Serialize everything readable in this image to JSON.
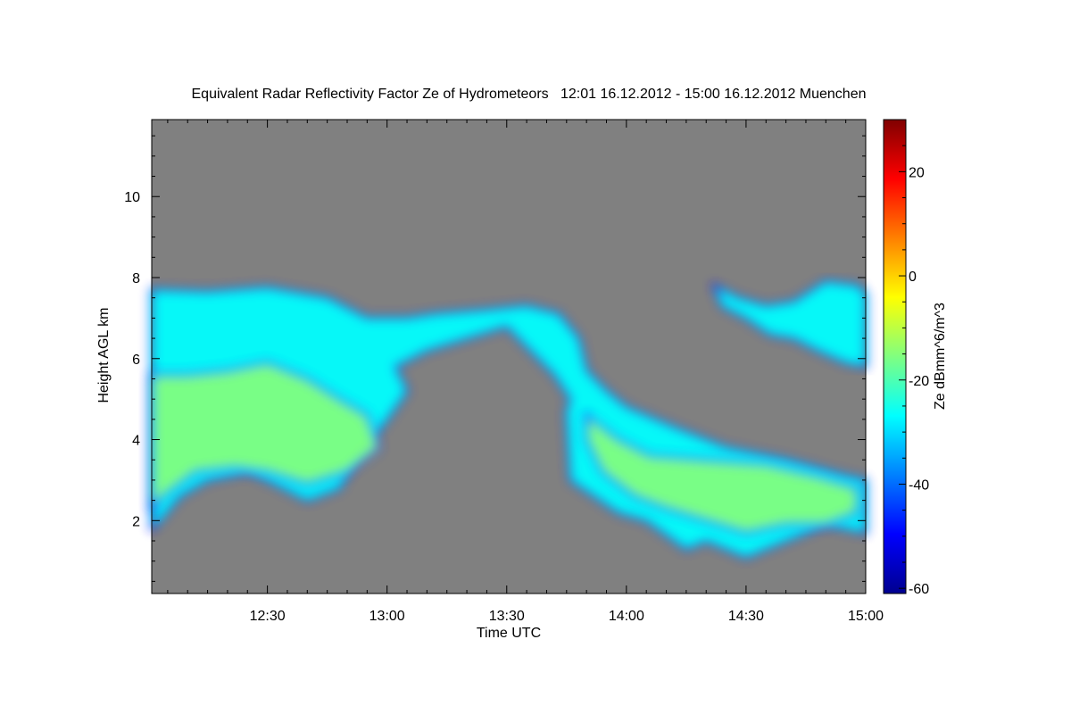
{
  "chart_data": {
    "type": "heatmap",
    "title": "Equivalent Radar Reflectivity Factor Ze of Hydrometeors   12:01 16.12.2012 - 15:00 16.12.2012 Muenchen",
    "xlabel": "Time UTC",
    "ylabel": "Height AGL km",
    "x_ticks": [
      "12:30",
      "13:00",
      "13:30",
      "14:00",
      "14:30",
      "15:00"
    ],
    "x_tick_minutes": [
      30,
      60,
      90,
      120,
      150,
      180
    ],
    "xlim_minutes": [
      1,
      180
    ],
    "y_ticks": [
      "2",
      "4",
      "6",
      "8",
      "10"
    ],
    "y_tick_values": [
      2,
      4,
      6,
      8,
      10
    ],
    "ylim": [
      0.2,
      11.9
    ],
    "colorbar": {
      "label": "Ze dBmm^6/m^3",
      "ticks": [
        "20",
        "0",
        "-20",
        "-40",
        "-60"
      ],
      "tick_values": [
        20,
        0,
        -20,
        -40,
        -60
      ],
      "range": [
        -61,
        30
      ],
      "colors": [
        "#00008f",
        "#0000ff",
        "#0080ff",
        "#00ffff",
        "#80ff80",
        "#ffff00",
        "#ff8000",
        "#ff0000",
        "#800000"
      ]
    },
    "background_color": "#808080",
    "echo_regions": [
      {
        "name": "cloud-1",
        "points": [
          [
            1,
            7.7
          ],
          [
            15,
            7.65
          ],
          [
            30,
            7.75
          ],
          [
            45,
            7.5
          ],
          [
            55,
            7.0
          ],
          [
            65,
            7.0
          ],
          [
            72,
            7.1
          ],
          [
            85,
            7.2
          ],
          [
            95,
            7.3
          ],
          [
            103,
            7.1
          ],
          [
            108,
            6.5
          ],
          [
            110,
            5.7
          ],
          [
            115,
            5.2
          ],
          [
            120,
            4.8
          ],
          [
            132,
            4.3
          ],
          [
            145,
            3.8
          ],
          [
            160,
            3.5
          ],
          [
            175,
            3.1
          ],
          [
            180,
            3.0
          ],
          [
            180,
            1.7
          ],
          [
            170,
            1.9
          ],
          [
            160,
            1.5
          ],
          [
            150,
            1.1
          ],
          [
            140,
            1.5
          ],
          [
            135,
            1.3
          ],
          [
            125,
            2.0
          ],
          [
            118,
            2.2
          ],
          [
            112,
            2.6
          ],
          [
            106,
            3.0
          ],
          [
            105,
            4.7
          ],
          [
            106,
            5.0
          ],
          [
            102,
            5.6
          ],
          [
            98,
            6.0
          ],
          [
            90,
            6.8
          ],
          [
            80,
            6.5
          ],
          [
            70,
            6.2
          ],
          [
            62,
            5.8
          ],
          [
            65,
            5.2
          ],
          [
            60,
            4.5
          ],
          [
            52,
            3.5
          ],
          [
            48,
            2.8
          ],
          [
            40,
            2.5
          ],
          [
            30,
            3.0
          ],
          [
            25,
            3.2
          ],
          [
            15,
            3.0
          ],
          [
            8,
            2.6
          ],
          [
            3,
            2.0
          ],
          [
            1,
            1.8
          ]
        ],
        "value": -30
      },
      {
        "name": "cloud-1-core",
        "points": [
          [
            1,
            5.6
          ],
          [
            10,
            5.6
          ],
          [
            20,
            5.7
          ],
          [
            30,
            5.9
          ],
          [
            40,
            5.5
          ],
          [
            48,
            5.0
          ],
          [
            55,
            4.6
          ],
          [
            58,
            3.8
          ],
          [
            50,
            3.2
          ],
          [
            40,
            2.9
          ],
          [
            30,
            3.2
          ],
          [
            22,
            3.3
          ],
          [
            12,
            3.2
          ],
          [
            4,
            2.6
          ],
          [
            1,
            2.3
          ]
        ],
        "value": -12
      },
      {
        "name": "cloud-2-core",
        "points": [
          [
            110,
            4.6
          ],
          [
            118,
            4.0
          ],
          [
            126,
            3.6
          ],
          [
            140,
            3.5
          ],
          [
            155,
            3.4
          ],
          [
            168,
            3.1
          ],
          [
            178,
            2.8
          ],
          [
            178,
            2.2
          ],
          [
            170,
            1.9
          ],
          [
            160,
            1.9
          ],
          [
            150,
            1.7
          ],
          [
            140,
            2.0
          ],
          [
            130,
            2.3
          ],
          [
            122,
            2.6
          ],
          [
            114,
            3.2
          ],
          [
            110,
            4.0
          ]
        ],
        "value": -12
      },
      {
        "name": "cloud-3",
        "points": [
          [
            142,
            7.8
          ],
          [
            148,
            7.5
          ],
          [
            155,
            7.3
          ],
          [
            162,
            7.4
          ],
          [
            170,
            7.9
          ],
          [
            178,
            7.8
          ],
          [
            180,
            7.6
          ],
          [
            180,
            5.8
          ],
          [
            175,
            5.9
          ],
          [
            168,
            6.2
          ],
          [
            162,
            6.5
          ],
          [
            156,
            6.6
          ],
          [
            150,
            7.0
          ],
          [
            144,
            7.3
          ]
        ],
        "value": -30
      }
    ]
  }
}
